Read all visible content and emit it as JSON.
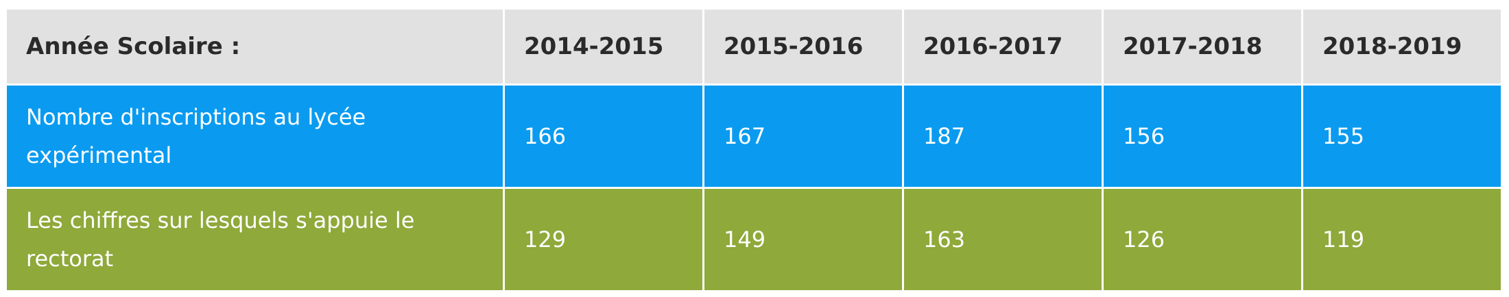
{
  "table": {
    "header": [
      "Année Scolaire :",
      "2014-2015",
      "2015-2016",
      "2016-2017",
      "2017-2018",
      "2018-2019"
    ],
    "rows": [
      [
        "Nombre d'inscriptions au lycée expérimental",
        166,
        167,
        187,
        156,
        155
      ],
      [
        "Les chiffres sur lesquels s'appuie le rectorat",
        129,
        149,
        163,
        126,
        119
      ]
    ]
  }
}
